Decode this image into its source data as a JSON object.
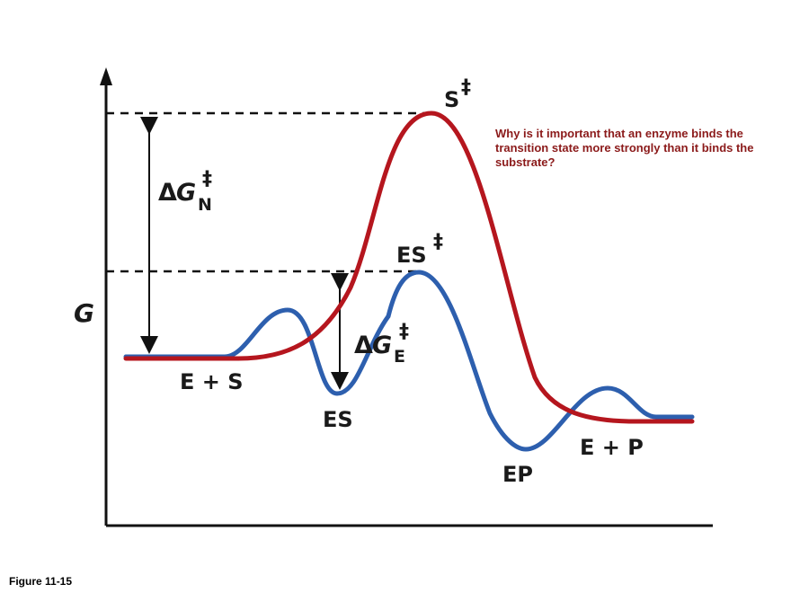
{
  "labels": {
    "axis_g": "G",
    "s_transition": "S",
    "es_transition": "ES",
    "dagger": "‡",
    "delta_symbol": "Δ",
    "delta_g_n_letter": "G",
    "delta_g_n_subscript": "N",
    "delta_g_e_letter": "G",
    "delta_g_e_subscript": "E",
    "e_plus_s": "E + S",
    "es_intermediate": "ES",
    "ep_intermediate": "EP",
    "e_plus_p": "E + P"
  },
  "question": "Why is it important that an enzyme binds the transition state more strongly than it binds the substrate?",
  "figure_caption": "Figure 11-15",
  "colors": {
    "uncatalyzed": "#b5161e",
    "catalyzed": "#2d5fae",
    "axes": "#111111",
    "question_text": "#8b1a1a"
  }
}
